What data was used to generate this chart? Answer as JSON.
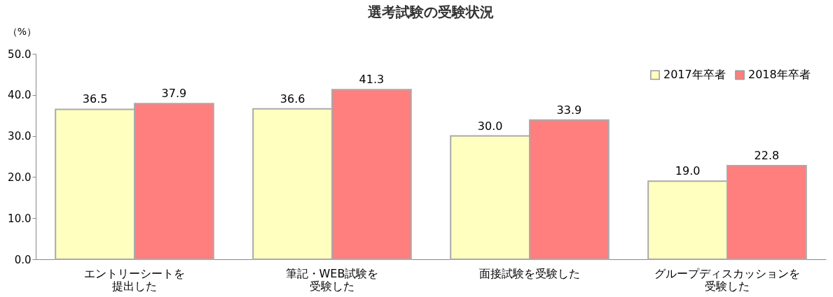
{
  "chart_data": {
    "type": "bar",
    "title": "選考試験の受験状況",
    "ylabel": "（%）",
    "categories": [
      "エントリーシートを提出した",
      "筆記・WEB試験を受験した",
      "面接試験を受験した",
      "グループディスカッションを受験した"
    ],
    "series": [
      {
        "name": "2017年卒者",
        "color": "#ffffc0",
        "values": [
          36.5,
          36.6,
          30.0,
          19.0
        ],
        "value_labels": [
          "36.5",
          "36.6",
          "30.0",
          "19.0"
        ]
      },
      {
        "name": "2018年卒者",
        "color": "#ff7f7f",
        "values": [
          37.9,
          41.3,
          33.9,
          22.8
        ],
        "value_labels": [
          "37.9",
          "41.3",
          "33.9",
          "22.8"
        ]
      }
    ],
    "ylim": [
      0,
      50
    ],
    "yticks": [
      {
        "value": 0,
        "label": "0.0"
      },
      {
        "value": 10,
        "label": "10.0"
      },
      {
        "value": 20,
        "label": "20.0"
      },
      {
        "value": 30,
        "label": "30.0"
      },
      {
        "value": 40,
        "label": "40.0"
      },
      {
        "value": 50,
        "label": "50.0"
      }
    ],
    "grid": false,
    "legend": "top right"
  }
}
